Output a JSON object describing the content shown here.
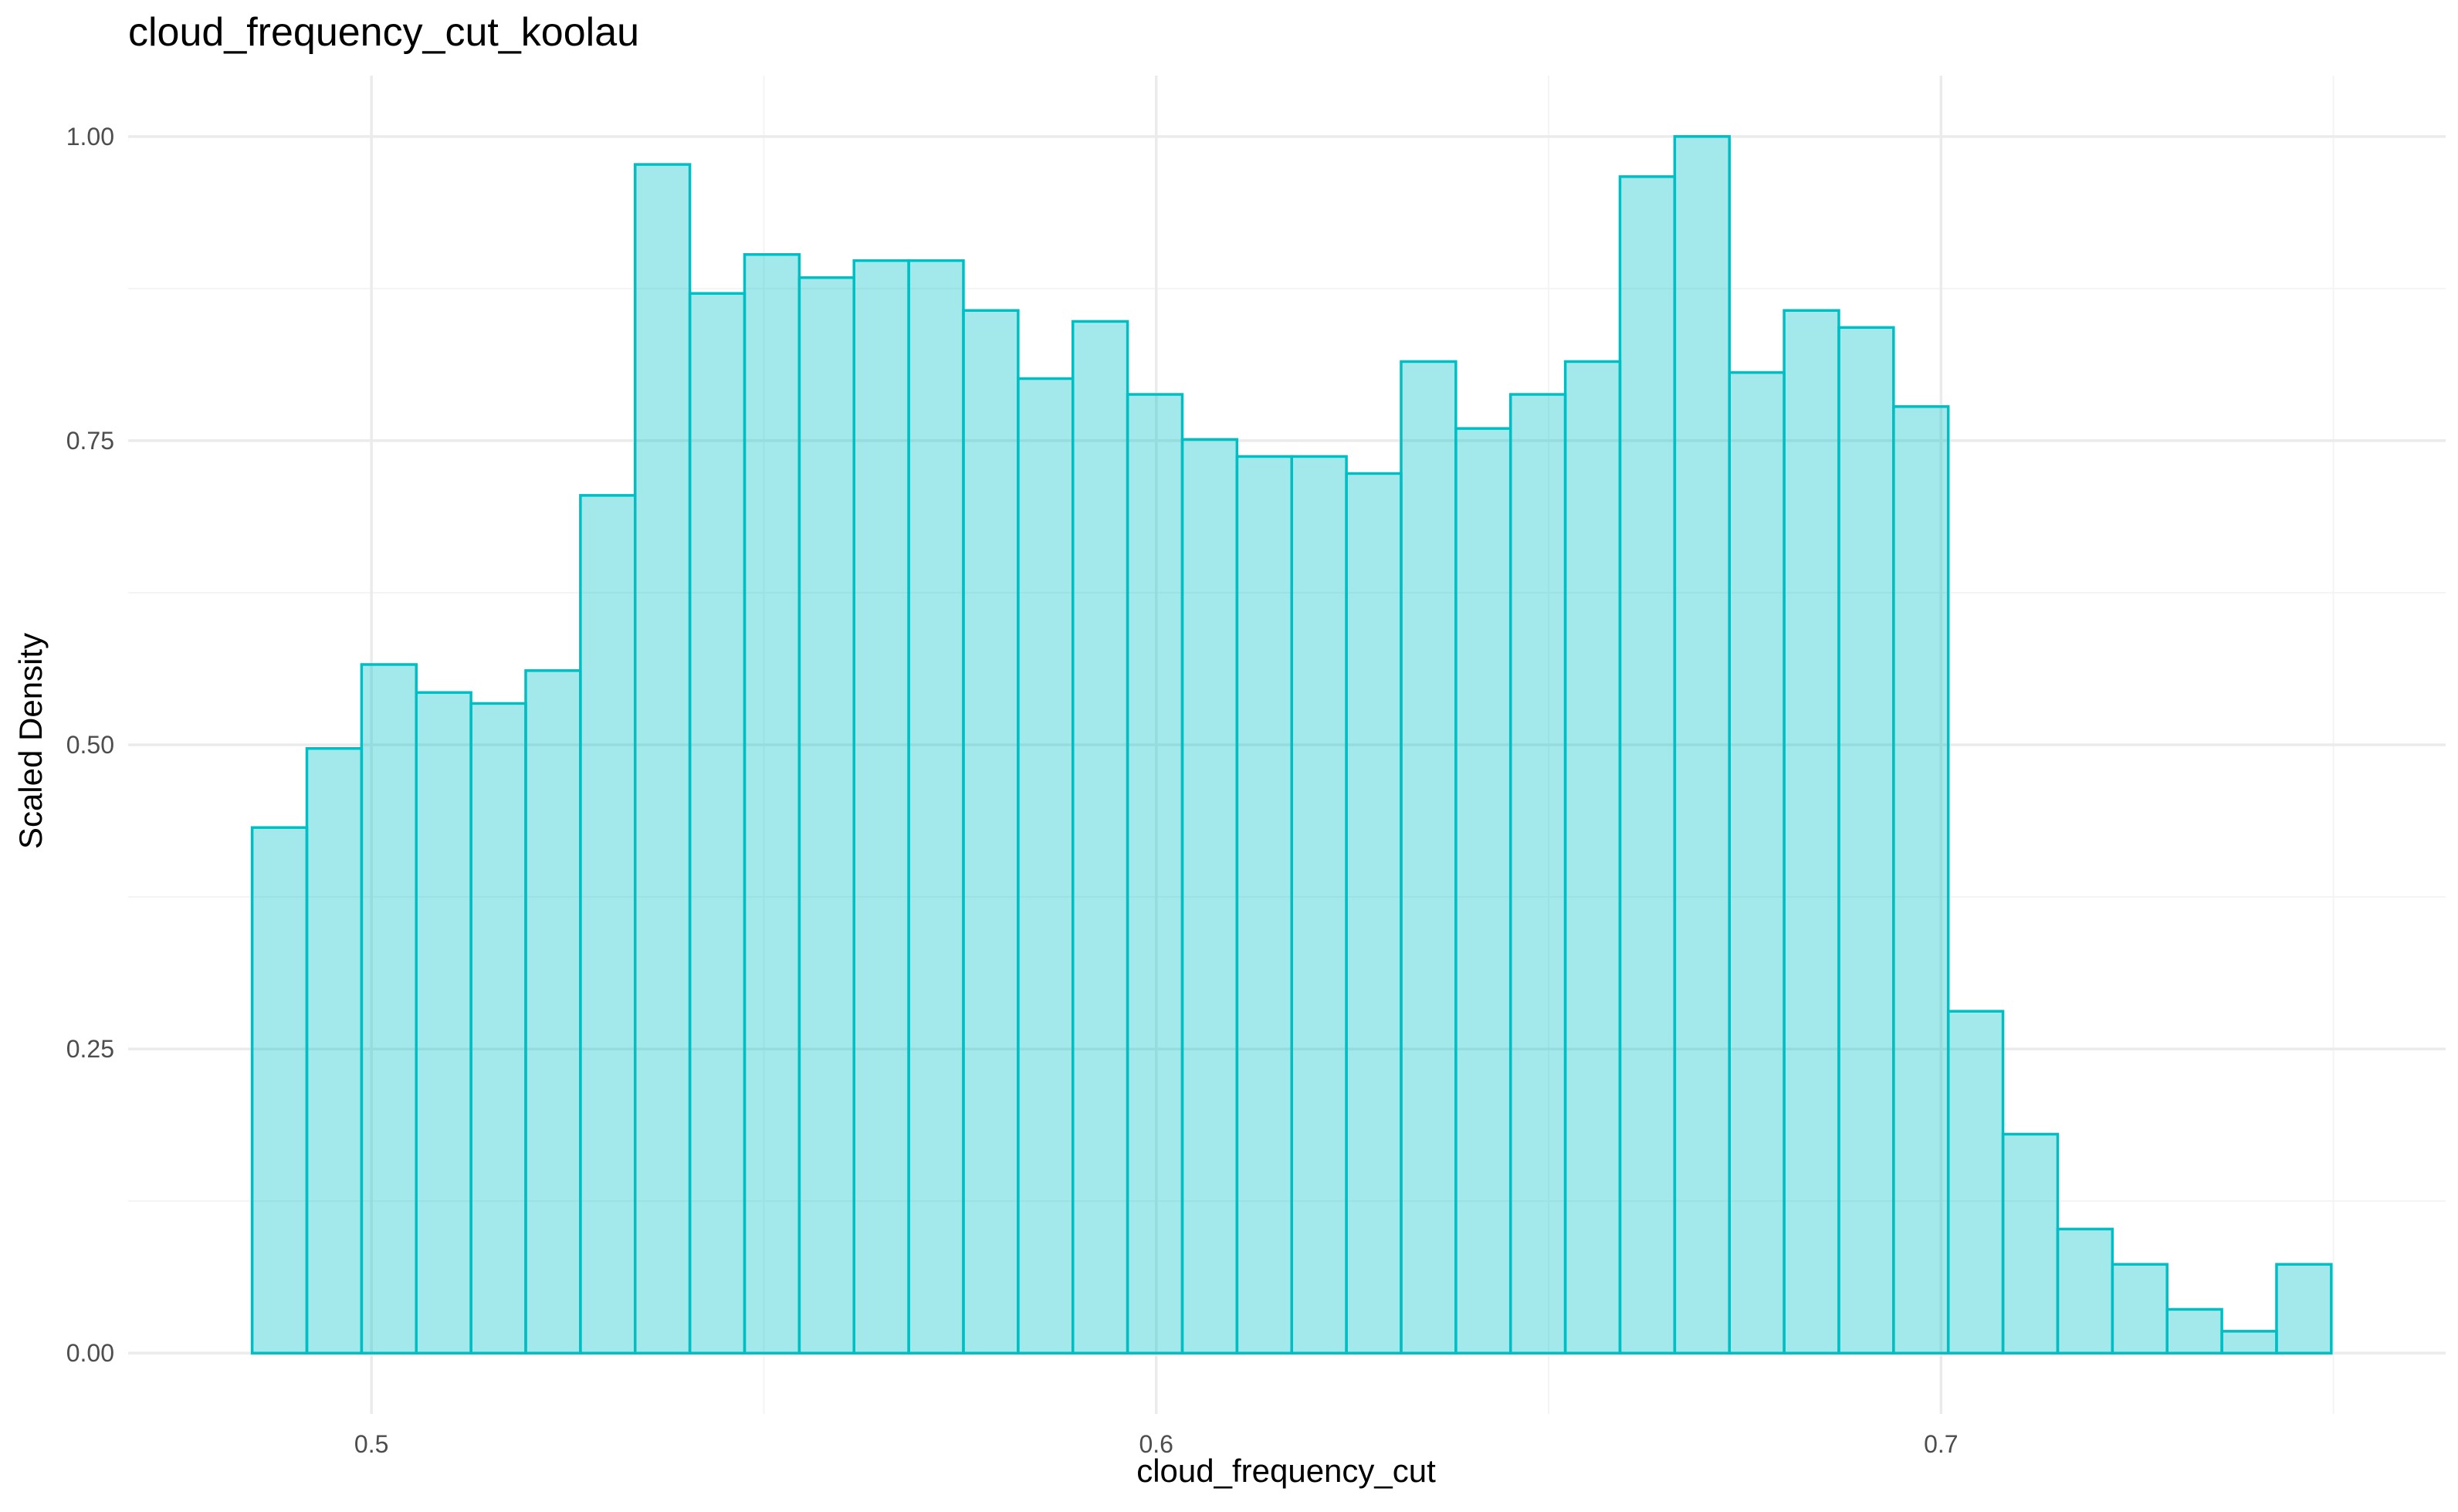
{
  "chart_data": {
    "type": "bar",
    "title": "cloud_frequency_cut_koolau",
    "xlabel": "cloud_frequency_cut",
    "ylabel": "Scaled Density",
    "xlim": [
      0.469,
      0.7643
    ],
    "ylim": [
      -0.05,
      1.05
    ],
    "x_ticks": [
      0.5,
      0.6,
      0.7
    ],
    "x_tick_labels": [
      "0.5",
      "0.6",
      "0.7"
    ],
    "x_minor_ticks": [
      0.55,
      0.65,
      0.75
    ],
    "y_ticks": [
      0,
      0.25,
      0.5,
      0.75,
      1.0
    ],
    "y_tick_labels": [
      "0.00",
      "0.25",
      "0.50",
      "0.75",
      "1.00"
    ],
    "y_minor_ticks": [
      0.125,
      0.375,
      0.625,
      0.875
    ],
    "bin_start": 0.4848,
    "bin_width": 0.0069717,
    "values": [
      0.432,
      0.497,
      0.566,
      0.543,
      0.534,
      0.561,
      0.705,
      0.977,
      0.871,
      0.903,
      0.884,
      0.898,
      0.898,
      0.857,
      0.801,
      0.848,
      0.788,
      0.751,
      0.737,
      0.737,
      0.723,
      0.815,
      0.76,
      0.788,
      0.815,
      0.967,
      1.0,
      0.806,
      0.857,
      0.843,
      0.778,
      0.281,
      0.18,
      0.102,
      0.073,
      0.036,
      0.018,
      0.073
    ],
    "grid": true,
    "colors": {
      "fill": "#00BFC4",
      "fill_opacity": 0.36,
      "stroke": "#00BFC4",
      "grid_major": "#ebebeb",
      "grid_minor": "#f4f4f4"
    }
  }
}
